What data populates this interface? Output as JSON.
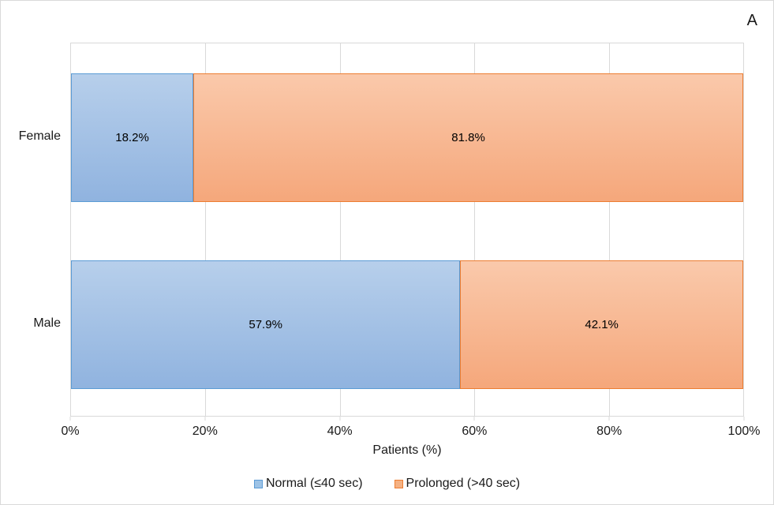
{
  "panel_label": "A",
  "chart_data": {
    "type": "bar",
    "orientation": "horizontal",
    "stacked": true,
    "categories": [
      "Female",
      "Male"
    ],
    "series": [
      {
        "name": "Normal (≤40 sec)",
        "values": [
          18.2,
          57.9
        ],
        "fill_top": "#b7cfeb",
        "fill_bottom": "#90b3df",
        "border": "#5b9bd5",
        "swatch_fill": "#9dc3e6"
      },
      {
        "name": "Prolonged (>40 sec)",
        "values": [
          81.8,
          42.1
        ],
        "fill_top": "#fac9ab",
        "fill_bottom": "#f5a77b",
        "border": "#ed7d31",
        "swatch_fill": "#f5b183"
      }
    ],
    "data_labels": [
      [
        "18.2%",
        "81.8%"
      ],
      [
        "57.9%",
        "42.1%"
      ]
    ],
    "xlabel": "Patients (%)",
    "x_ticks": [
      "0%",
      "20%",
      "40%",
      "60%",
      "80%",
      "100%"
    ],
    "x_tick_positions": [
      0,
      20,
      40,
      60,
      80,
      100
    ],
    "xlim": [
      0,
      100
    ],
    "grid": "vertical",
    "gridline_positions": [
      20,
      40,
      60,
      80
    ],
    "gridline_color": "#d9d9d9",
    "legend_position": "bottom"
  }
}
